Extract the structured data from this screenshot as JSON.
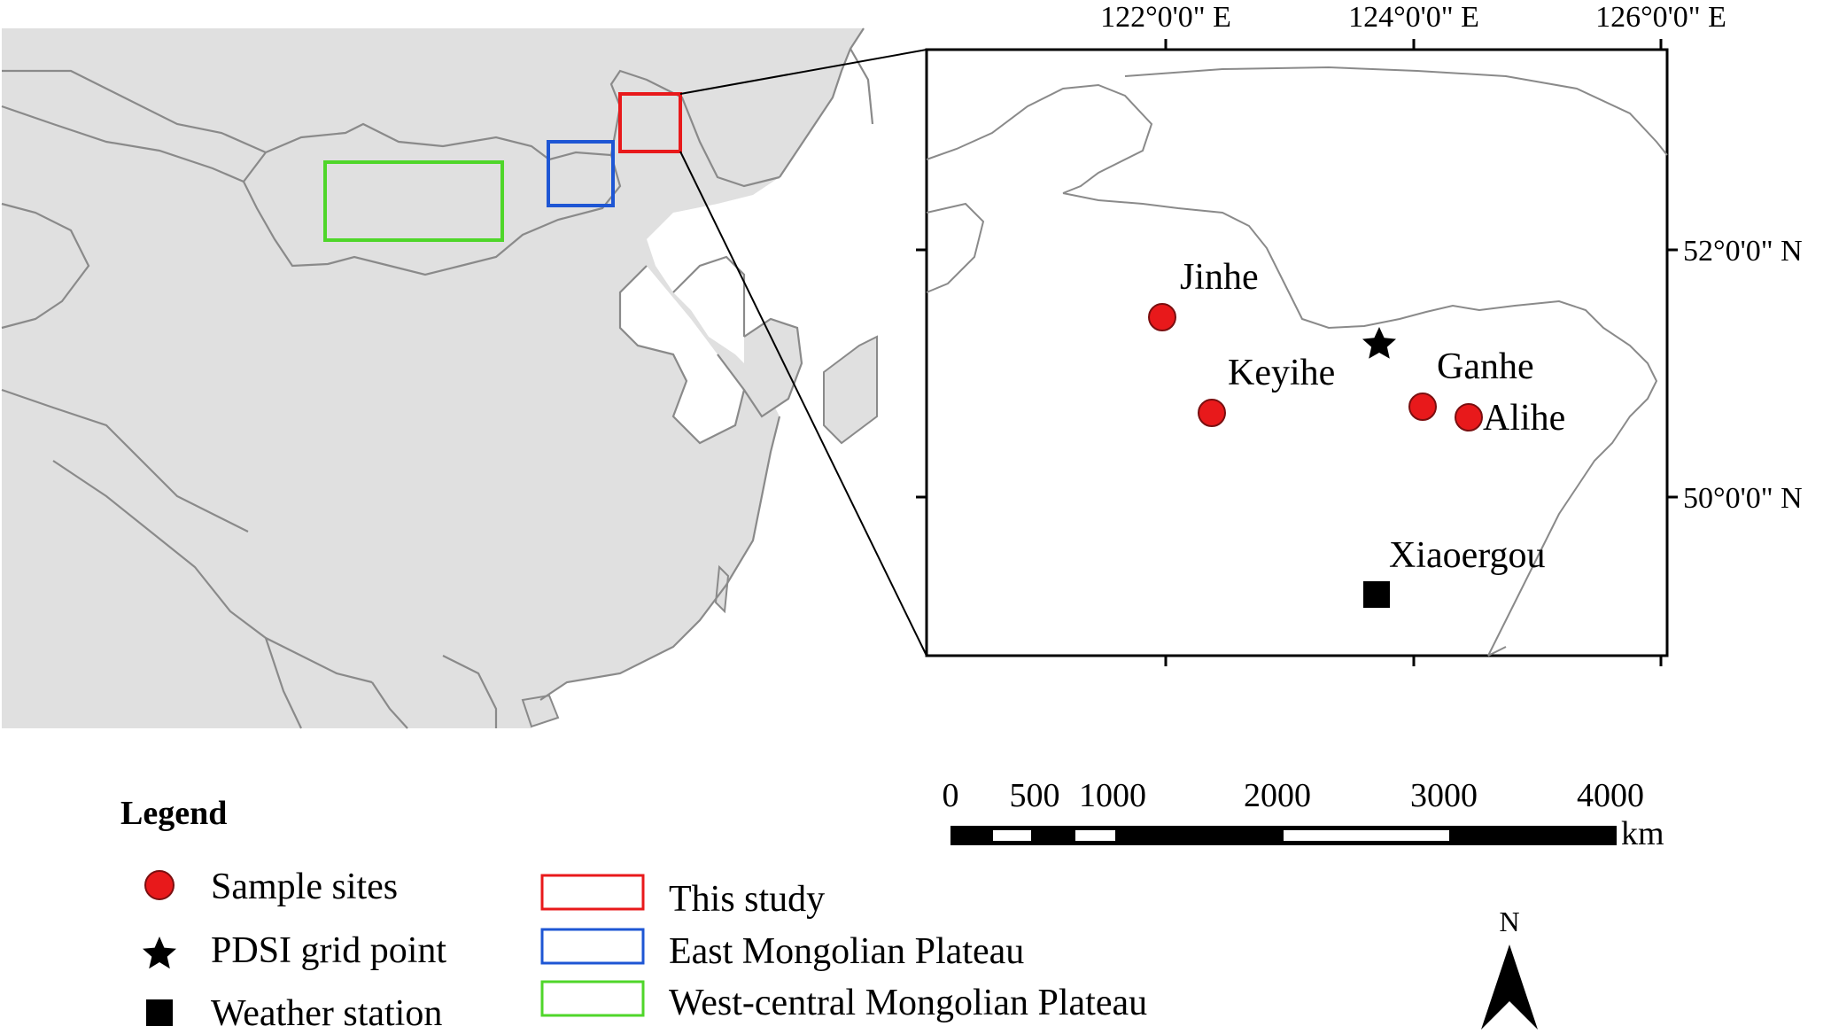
{
  "map": {
    "longitude_labels": [
      "122°0'0\" E",
      "124°0'0\" E",
      "126°0'0\" E"
    ],
    "latitude_labels": [
      "52°0'0\" N",
      "50°0'0\" N"
    ],
    "sites": [
      {
        "name": "Jinhe",
        "lon": 122.0,
        "lat": 51.4
      },
      {
        "name": "Keyihe",
        "lon": 122.4,
        "lat": 50.7
      },
      {
        "name": "Ganhe",
        "lon": 124.1,
        "lat": 50.75
      },
      {
        "name": "Alihe",
        "lon": 124.45,
        "lat": 50.65
      }
    ],
    "pdsi_point": {
      "lon": 123.75,
      "lat": 51.25
    },
    "weather_station": {
      "name": "Xiaoergou",
      "lon": 123.7,
      "lat": 49.2
    }
  },
  "scale_bar": {
    "ticks": [
      "0",
      "500",
      "1000",
      "2000",
      "3000",
      "4000"
    ],
    "unit": "km"
  },
  "legend": {
    "title": "Legend",
    "symbols": [
      {
        "label": "Sample sites",
        "icon": "red-circle-icon"
      },
      {
        "label": "PDSI grid point",
        "icon": "star-icon"
      },
      {
        "label": "Weather station",
        "icon": "square-icon"
      }
    ],
    "boxes": [
      {
        "label": "This study",
        "color": "#e8191b"
      },
      {
        "label": "East Mongolian Plateau",
        "color": "#1e56d4"
      },
      {
        "label": "West-central Mongolian Plateau",
        "color": "#4fd62a"
      }
    ]
  },
  "north_arrow": {
    "label": "N"
  },
  "colors": {
    "land": "#e0e0e0",
    "border": "#8a8a8a",
    "site": "#e8191b"
  }
}
